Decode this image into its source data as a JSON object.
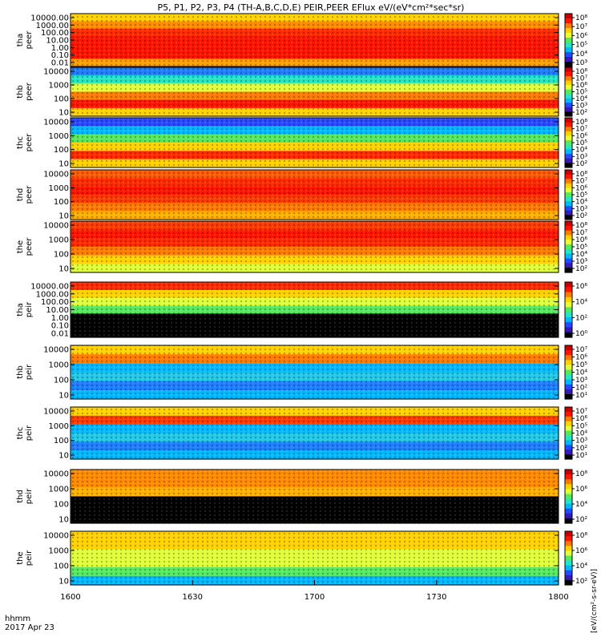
{
  "chart_data": {
    "type": "heatmap",
    "title": "P5, P1, P2, P3, P4 (TH-A,B,C,D,E) PEIR,PEER EFlux eV/(eV*cm²*sec*sr)",
    "x_ticks": [
      "1600",
      "1630",
      "1700",
      "1730",
      "1800"
    ],
    "x_label_line1": "hhmm",
    "x_label_line2": "2017 Apr 23",
    "colorbar_unit_label": "[eV/(cm²-s-sr-eV)]",
    "colormap": [
      "#000000",
      "#3a18b8",
      "#1f4cff",
      "#00b8ff",
      "#22e6c4",
      "#58e860",
      "#e0ff3a",
      "#ffd200",
      "#ff7a00",
      "#ff1400",
      "#c80000"
    ],
    "panels": [
      {
        "label": [
          "tha",
          "peer"
        ],
        "yticks": [
          "10000.00",
          "1000.00",
          "100.00",
          "10.00",
          "1.00",
          "0.10",
          "0.01"
        ],
        "cbar_ticks": [
          "10⁸",
          "10⁷",
          "10⁶",
          "10⁵",
          "10⁴",
          "10³"
        ],
        "bands": [
          "#ffd200",
          "#ff8a00",
          "#ff2a00",
          "#ff1400",
          "#ff1400",
          "#ff1400",
          "#ffa000"
        ]
      },
      {
        "label": [
          "thb",
          "peer"
        ],
        "yticks": [
          "10000",
          "1000",
          "100",
          "10"
        ],
        "cbar_ticks": [
          "10⁸",
          "10⁷",
          "10⁶",
          "10⁵",
          "10⁴",
          "10³",
          "10²"
        ],
        "bands": [
          "#1f7dff",
          "#22e6c4",
          "#e0ff3a",
          "#ff7a00",
          "#ff1400",
          "#ffd200"
        ]
      },
      {
        "label": [
          "thc",
          "peer"
        ],
        "yticks": [
          "10000",
          "1000",
          "100",
          "10"
        ],
        "cbar_ticks": [
          "10⁸",
          "10⁷",
          "10⁶",
          "10⁵",
          "10⁴",
          "10³",
          "10²"
        ],
        "bands": [
          "#2a48ff",
          "#00b8ff",
          "#58e860",
          "#ffd200",
          "#ff2a00",
          "#ffd200"
        ]
      },
      {
        "label": [
          "thd",
          "peer"
        ],
        "yticks": [
          "10000",
          "1000",
          "100",
          "10"
        ],
        "cbar_ticks": [
          "10⁸",
          "10⁷",
          "10⁶",
          "10⁵",
          "10⁴",
          "10³",
          "10²"
        ],
        "bands": [
          "#ff5a00",
          "#ff2a00",
          "#ff1400",
          "#ff3a00",
          "#ff7a00",
          "#ffb000"
        ]
      },
      {
        "label": [
          "the",
          "peer"
        ],
        "yticks": [
          "10000",
          "1000",
          "100",
          "10"
        ],
        "cbar_ticks": [
          "10⁸",
          "10⁷",
          "10⁶",
          "10⁵",
          "10⁴",
          "10³",
          "10²"
        ],
        "bands": [
          "#ff3a00",
          "#ff1400",
          "#ff2a00",
          "#ff7a00",
          "#ffd200",
          "#e0ff3a"
        ]
      },
      {
        "label": [
          "tha",
          "peir"
        ],
        "yticks": [
          "10000.00",
          "1000.00",
          "100.00",
          "10.00",
          "1.00",
          "0.10",
          "0.01"
        ],
        "cbar_ticks": [
          "10⁶",
          "10⁴",
          "10²",
          "10⁰"
        ],
        "bands": [
          "#ff2a00",
          "#ffd200",
          "#e0ff3a",
          "#58e860",
          "#000000",
          "#000000",
          "#000000"
        ]
      },
      {
        "label": [
          "thb",
          "peir"
        ],
        "yticks": [
          "10000",
          "1000",
          "100",
          "10"
        ],
        "cbar_ticks": [
          "10⁷",
          "10⁶",
          "10⁵",
          "10⁴",
          "10³",
          "10²",
          "10¹"
        ],
        "bands": [
          "#ffd200",
          "#ff7a00",
          "#00b8ff",
          "#22c8e6",
          "#1f7dff",
          "#00b8ff"
        ]
      },
      {
        "label": [
          "thc",
          "peir"
        ],
        "yticks": [
          "10000",
          "1000",
          "100",
          "10"
        ],
        "cbar_ticks": [
          "10⁷",
          "10⁶",
          "10⁵",
          "10⁴",
          "10³",
          "10²",
          "10¹"
        ],
        "bands": [
          "#ffd200",
          "#ff3a00",
          "#00b8ff",
          "#22c8e6",
          "#1f7dff",
          "#00b8ff"
        ]
      },
      {
        "label": [
          "thd",
          "peir"
        ],
        "yticks": [
          "10000",
          "1000",
          "100",
          "10"
        ],
        "cbar_ticks": [
          "10⁸",
          "10⁶",
          "10⁴",
          "10²"
        ],
        "bands": [
          "#ff8a00",
          "#ff8a00",
          "#ffb000",
          "#000000",
          "#000000",
          "#000000"
        ]
      },
      {
        "label": [
          "the",
          "peir"
        ],
        "yticks": [
          "10000",
          "1000",
          "100",
          "10"
        ],
        "cbar_ticks": [
          "10⁸",
          "10⁶",
          "10⁴",
          "10²"
        ],
        "bands": [
          "#ffd200",
          "#ffd200",
          "#e0ff3a",
          "#e0ff3a",
          "#58e860",
          "#00b8ff"
        ]
      }
    ]
  }
}
